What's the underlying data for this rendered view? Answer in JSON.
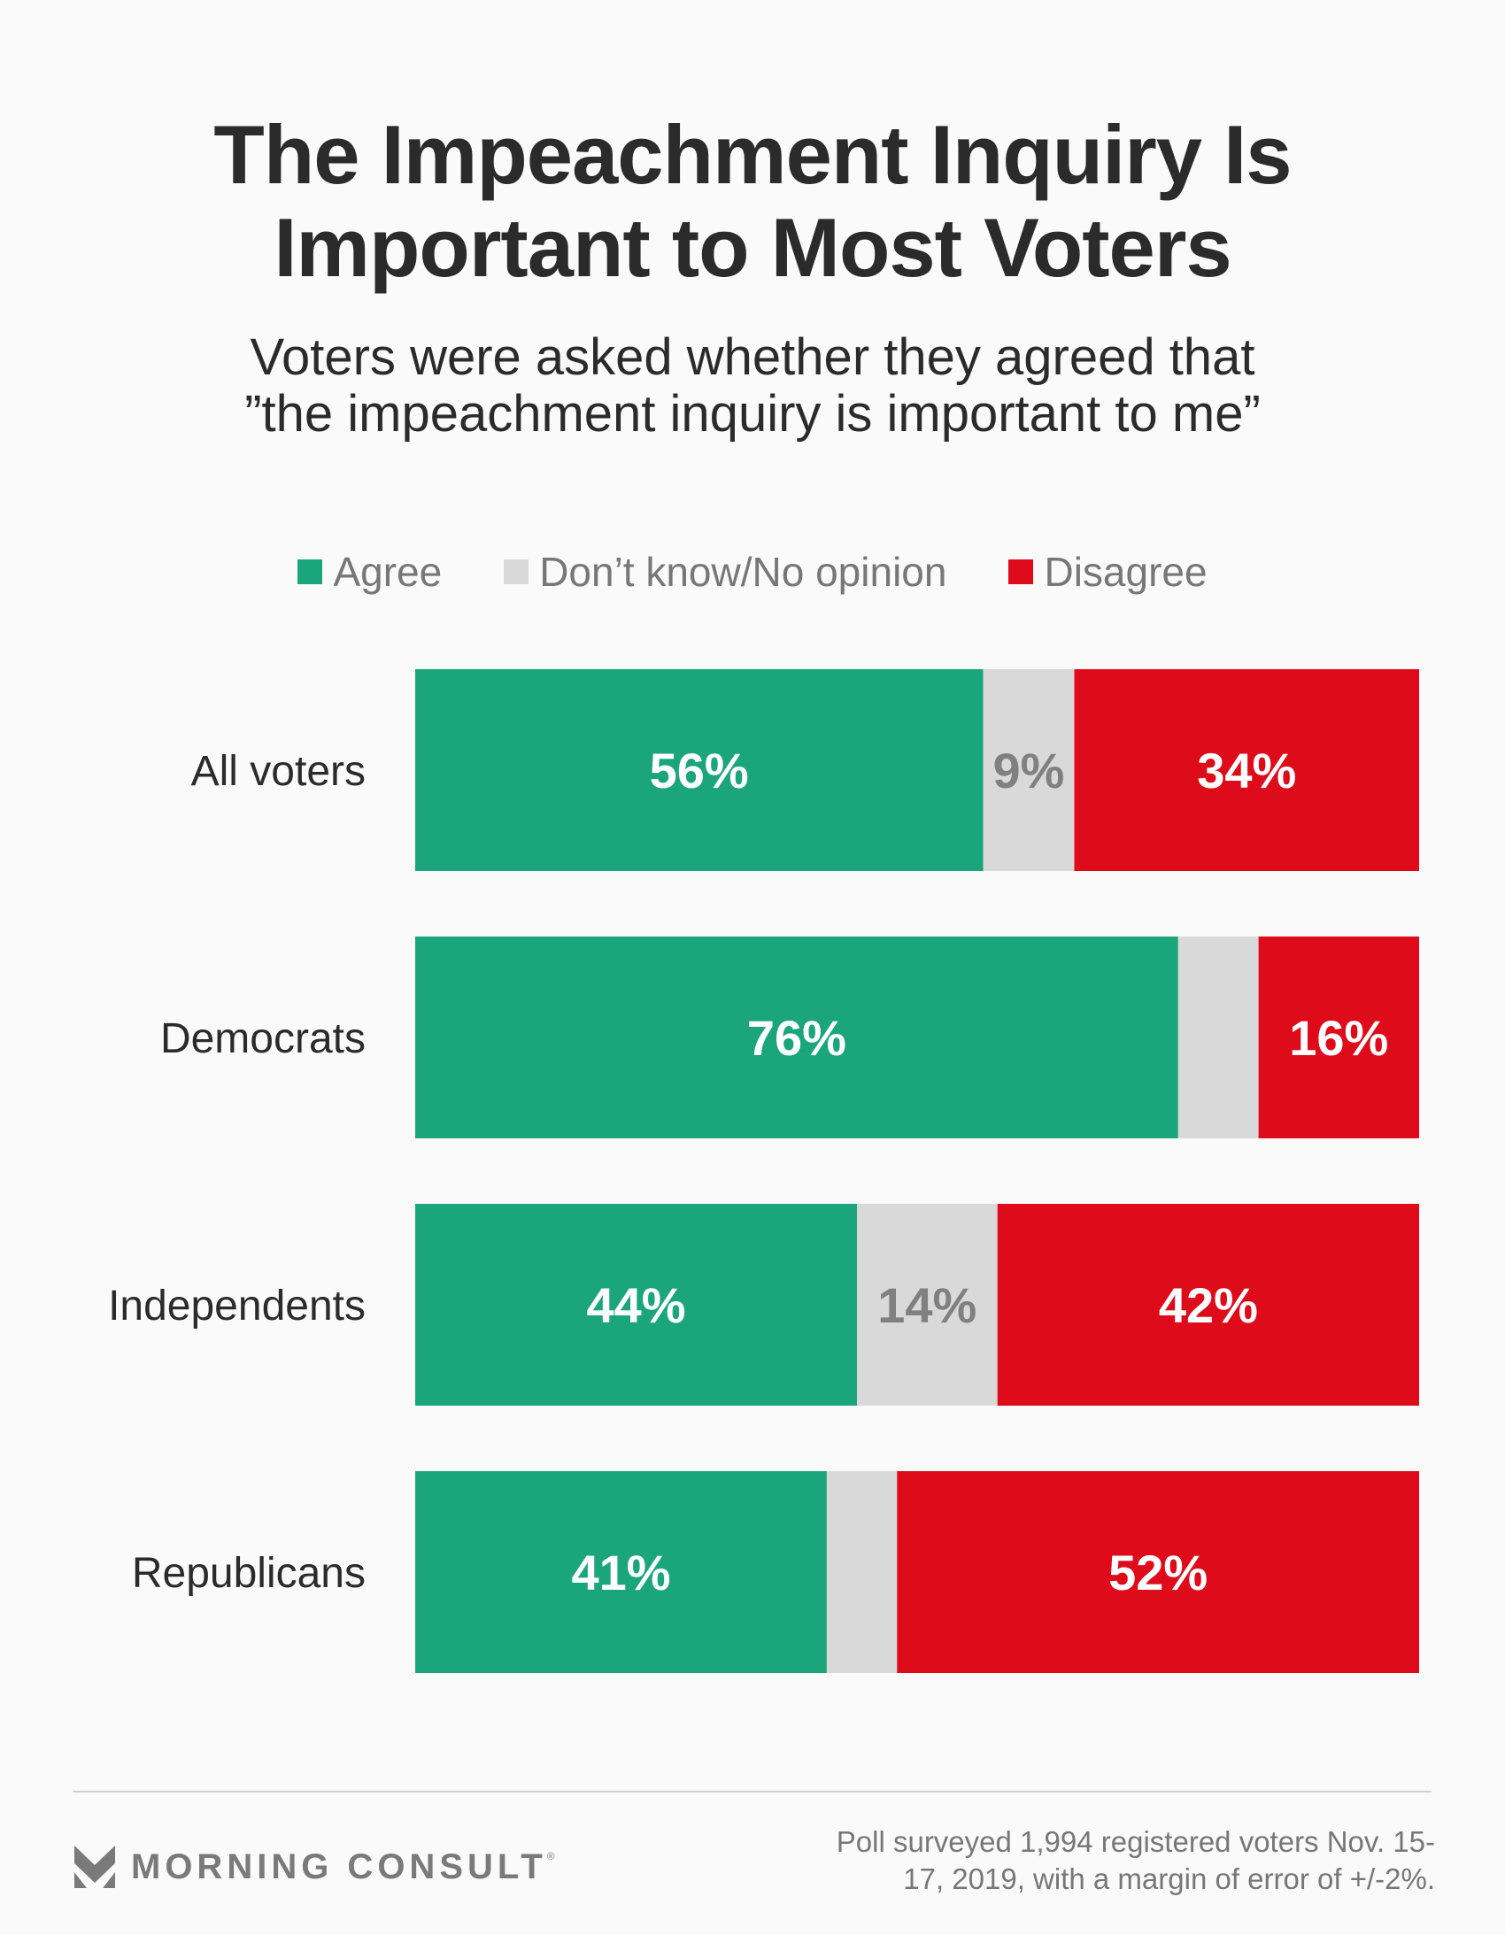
{
  "header": {
    "title_lines": [
      "The Impeachment Inquiry Is",
      "Important to Most Voters"
    ],
    "subtitle_lines": [
      "Voters were asked whether they agreed that",
      "”the impeachment inquiry is important to me”"
    ]
  },
  "legend": [
    {
      "label": "Agree",
      "color": "#1ba57b"
    },
    {
      "label": "Don’t know/No opinion",
      "color": "#d9d9d9"
    },
    {
      "label": "Disagree",
      "color": "#de0b1b"
    }
  ],
  "chart_data": {
    "type": "bar",
    "orientation": "horizontal",
    "stacked": true,
    "title": "The Impeachment Inquiry Is Important to Most Voters",
    "subtitle": "Voters were asked whether they agreed that ”the impeachment inquiry is important to me”",
    "categories": [
      "All voters",
      "Democrats",
      "Independents",
      "Republicans"
    ],
    "series": [
      {
        "name": "Agree",
        "color": "#1ba57b",
        "label_color": "#ffffff",
        "values": [
          56,
          76,
          44,
          41
        ],
        "labels": [
          "56%",
          "76%",
          "44%",
          "41%"
        ]
      },
      {
        "name": "Don’t know/No opinion",
        "color": "#d9d9d9",
        "label_color": "#808080",
        "values": [
          9,
          8,
          14,
          7
        ],
        "labels": [
          "9%",
          "",
          "14%",
          ""
        ]
      },
      {
        "name": "Disagree",
        "color": "#de0b1b",
        "label_color": "#ffffff",
        "values": [
          34,
          16,
          42,
          52
        ],
        "labels": [
          "34%",
          "16%",
          "42%",
          "52%"
        ]
      }
    ],
    "xlim": [
      0,
      100
    ],
    "xlabel": "",
    "ylabel": "",
    "grid": false,
    "legend_position": "top-center",
    "units": "percent"
  },
  "footer": {
    "brand": "MORNING CONSULT",
    "brand_mark": "®",
    "note_lines": [
      "Poll surveyed 1,994 registered voters Nov. 15-",
      "17, 2019, with a margin of error of +/-2%."
    ]
  }
}
